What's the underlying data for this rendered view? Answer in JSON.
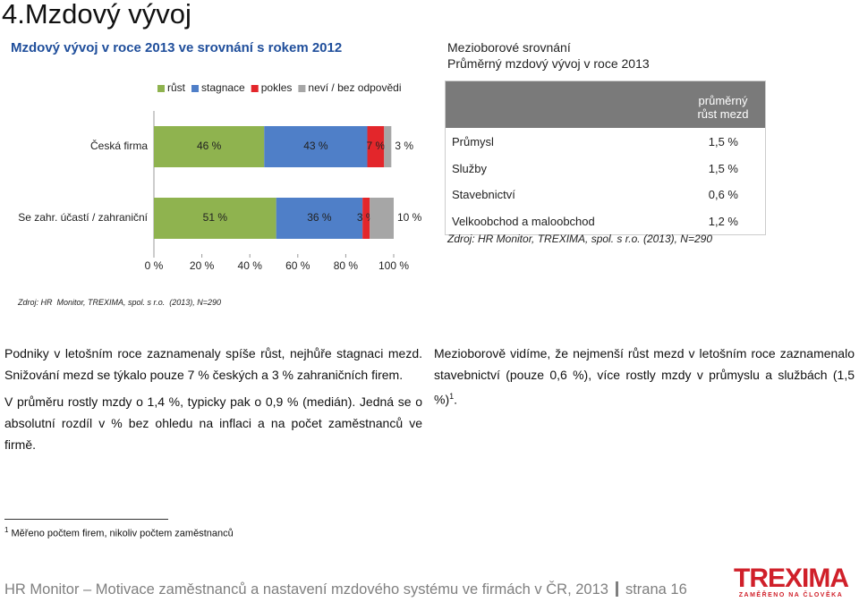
{
  "heading": "4.Mzdový vývoj",
  "left_title": "Mzdový vývoj v roce 2013 ve srovnání s rokem 2012",
  "right_title": [
    "Mezioborové srovnání",
    "Průměrný mzdový vývoj v roce 2013"
  ],
  "chart_data": {
    "type": "bar",
    "orientation": "horizontal",
    "stacked": true,
    "categories": [
      "Česká firma",
      "Se zahr. účastí / zahraniční"
    ],
    "series": [
      {
        "name": "růst",
        "color": "#8fb34f",
        "values": [
          46,
          51
        ],
        "value_labels": [
          "46 %",
          "51 %"
        ]
      },
      {
        "name": "stagnace",
        "color": "#4f7fc8",
        "values": [
          43,
          36
        ],
        "value_labels": [
          "43 %",
          "36 %"
        ]
      },
      {
        "name": "pokles",
        "color": "#e3262b",
        "values": [
          7,
          3
        ],
        "value_labels": [
          "7 %",
          "3 %"
        ]
      },
      {
        "name": "neví / bez odpovědi",
        "color": "#a6a6a6",
        "values": [
          3,
          10
        ],
        "value_labels": [
          "3 %",
          "10 %"
        ]
      }
    ],
    "xlim": [
      0,
      100
    ],
    "xticks": [
      {
        "value": 0,
        "label": "0 %"
      },
      {
        "value": 20,
        "label": "20 %"
      },
      {
        "value": 40,
        "label": "40 %"
      },
      {
        "value": 60,
        "label": "60 %"
      },
      {
        "value": 80,
        "label": "80 %"
      },
      {
        "value": 100,
        "label": "100 %"
      }
    ],
    "source": "Zdroj: HR  Monitor, TREXIMA, spol. s r.o.  (2013), N=290"
  },
  "table": {
    "header": [
      "průměrný",
      "růst mezd"
    ],
    "rows": [
      [
        "Průmysl",
        "1,5 %"
      ],
      [
        "Služby",
        "1,5 %"
      ],
      [
        "Stavebnictví",
        "0,6 %"
      ],
      [
        "Velkoobchod a maloobchod",
        "1,2 %"
      ]
    ],
    "source": "Zdroj: HR Monitor, TREXIMA, spol. s r.o. (2013), N=290"
  },
  "text_left": [
    "Podniky v letošním roce zaznamenaly spíše růst, nejhůře stagnaci mezd. Snižování mezd se týkalo pouze 7 % českých a 3 % zahraničních firem.",
    "V průměru rostly mzdy o 1,4 %, typicky pak o 0,9 % (medián). Jedná se o absolutní rozdíl v % bez ohledu na inflaci a na počet zaměstnanců ve firmě."
  ],
  "text_right": {
    "text": "Mezioborově vidíme, že nejmenší růst mezd v letošním roce zaznamenalo stavebnictví (pouze 0,6 %), více rostly mzdy v průmyslu a službách (1,5 %)",
    "note_ref": "1",
    "end": "."
  },
  "footnote": {
    "mark": "1",
    "text": "Měřeno počtem firem, nikoliv počtem zaměstnanců"
  },
  "footer": {
    "text": "HR Monitor – Motivace zaměstnanců a nastavení mzdového systému ve firmách v ČR, 2013",
    "page": "strana 16"
  },
  "logo": {
    "name": "TREXIMA",
    "tagline": "ZAMĚŘENO NA ČLOVĚKA"
  }
}
